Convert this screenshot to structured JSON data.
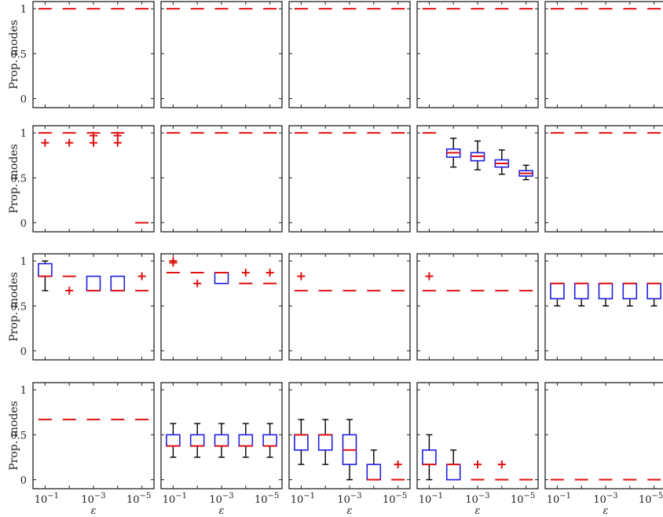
{
  "chart_data": {
    "type": "boxplot-grid",
    "rows": 4,
    "cols": 5,
    "ylabel": "Prop. modes",
    "xlabel": "ε",
    "ylim": [
      -0.1,
      1.08
    ],
    "yticks": [
      0,
      0.5,
      1
    ],
    "ytick_labels": [
      "0",
      "0.5",
      "1"
    ],
    "x_categories": [
      "10^-1",
      "10^-2",
      "10^-3",
      "10^-4",
      "10^-5"
    ],
    "xtick_labels": [
      {
        "base": "10",
        "exp": "−1"
      },
      {
        "base": "10",
        "exp": "−3"
      },
      {
        "base": "10",
        "exp": "−5"
      }
    ],
    "xtick_positions": [
      1,
      3,
      5
    ],
    "colors": {
      "box": "#1f1fe0",
      "median": "#e01010",
      "whisker": "#000000",
      "outlier": "#e01010",
      "axes": "#222222"
    },
    "panels": [
      {
        "row": 0,
        "col": 0,
        "boxes": [
          {
            "med": 1
          },
          {
            "med": 1
          },
          {
            "med": 1
          },
          {
            "med": 1
          },
          {
            "med": 1
          }
        ]
      },
      {
        "row": 0,
        "col": 1,
        "boxes": [
          {
            "med": 1
          },
          {
            "med": 1
          },
          {
            "med": 1
          },
          {
            "med": 1
          },
          {
            "med": 1
          }
        ]
      },
      {
        "row": 0,
        "col": 2,
        "boxes": [
          {
            "med": 1
          },
          {
            "med": 1
          },
          {
            "med": 1
          },
          {
            "med": 1
          },
          {
            "med": 1
          }
        ]
      },
      {
        "row": 0,
        "col": 3,
        "boxes": [
          {
            "med": 1
          },
          {
            "med": 1
          },
          {
            "med": 1
          },
          {
            "med": 1
          },
          {
            "med": 1
          }
        ]
      },
      {
        "row": 0,
        "col": 4,
        "boxes": [
          {
            "med": 1
          },
          {
            "med": 1
          },
          {
            "med": 1
          },
          {
            "med": 1
          },
          {
            "med": 1
          }
        ]
      },
      {
        "row": 1,
        "col": 0,
        "boxes": [
          {
            "med": 1,
            "out": [
              0.89
            ]
          },
          {
            "med": 1,
            "out": [
              0.89
            ]
          },
          {
            "med": 1,
            "out": [
              0.89,
              0.97
            ]
          },
          {
            "med": 1,
            "out": [
              0.89,
              0.97
            ]
          },
          {
            "med": 0
          }
        ]
      },
      {
        "row": 1,
        "col": 1,
        "boxes": [
          {
            "med": 1
          },
          {
            "med": 1
          },
          {
            "med": 1
          },
          {
            "med": 1
          },
          {
            "med": 1
          }
        ]
      },
      {
        "row": 1,
        "col": 2,
        "boxes": [
          {
            "med": 1
          },
          {
            "med": 1
          },
          {
            "med": 1
          },
          {
            "med": 1
          },
          {
            "med": 1
          }
        ]
      },
      {
        "row": 1,
        "col": 3,
        "boxes": [
          {
            "med": 1
          },
          {
            "lw": 0.62,
            "q1": 0.73,
            "med": 0.78,
            "q3": 0.82,
            "uw": 0.94
          },
          {
            "lw": 0.59,
            "q1": 0.69,
            "med": 0.74,
            "q3": 0.78,
            "uw": 0.91
          },
          {
            "lw": 0.54,
            "q1": 0.62,
            "med": 0.66,
            "q3": 0.7,
            "uw": 0.81
          },
          {
            "lw": 0.48,
            "q1": 0.52,
            "med": 0.55,
            "q3": 0.58,
            "uw": 0.64
          }
        ]
      },
      {
        "row": 1,
        "col": 4,
        "boxes": [
          {
            "med": 1
          },
          {
            "med": 1
          },
          {
            "med": 1
          },
          {
            "med": 1
          },
          {
            "med": 1
          }
        ]
      },
      {
        "row": 2,
        "col": 0,
        "boxes": [
          {
            "lw": 0.67,
            "q1": 0.83,
            "med": 0.83,
            "q3": 0.97,
            "uw": 1.0
          },
          {
            "med": 0.83,
            "out": [
              0.67
            ]
          },
          {
            "lw": 0.67,
            "q1": 0.67,
            "med": 0.67,
            "q3": 0.83,
            "uw": 0.83
          },
          {
            "lw": 0.67,
            "q1": 0.67,
            "med": 0.67,
            "q3": 0.83,
            "uw": 0.83
          },
          {
            "med": 0.67,
            "out": [
              0.83
            ]
          }
        ]
      },
      {
        "row": 2,
        "col": 1,
        "boxes": [
          {
            "med": 0.87,
            "out": [
              1.0,
              0.98
            ]
          },
          {
            "med": 0.87,
            "out": [
              0.75
            ]
          },
          {
            "lw": 0.75,
            "q1": 0.75,
            "med": 0.87,
            "q3": 0.87,
            "uw": 0.87
          },
          {
            "med": 0.75,
            "out": [
              0.87
            ]
          },
          {
            "med": 0.75,
            "out": [
              0.87
            ]
          }
        ]
      },
      {
        "row": 2,
        "col": 2,
        "boxes": [
          {
            "med": 0.67,
            "out": [
              0.83
            ]
          },
          {
            "med": 0.67
          },
          {
            "med": 0.67
          },
          {
            "med": 0.67
          },
          {
            "med": 0.67
          }
        ]
      },
      {
        "row": 2,
        "col": 3,
        "boxes": [
          {
            "med": 0.67,
            "out": [
              0.83
            ]
          },
          {
            "med": 0.67
          },
          {
            "med": 0.67
          },
          {
            "med": 0.67
          },
          {
            "med": 0.67
          }
        ]
      },
      {
        "row": 2,
        "col": 4,
        "boxes": [
          {
            "lw": 0.5,
            "q1": 0.58,
            "med": 0.75,
            "q3": 0.75,
            "uw": 0.75
          },
          {
            "lw": 0.5,
            "q1": 0.58,
            "med": 0.75,
            "q3": 0.75,
            "uw": 0.75
          },
          {
            "lw": 0.5,
            "q1": 0.58,
            "med": 0.75,
            "q3": 0.75,
            "uw": 0.75
          },
          {
            "lw": 0.5,
            "q1": 0.58,
            "med": 0.75,
            "q3": 0.75,
            "uw": 0.75
          },
          {
            "lw": 0.5,
            "q1": 0.58,
            "med": 0.75,
            "q3": 0.75,
            "uw": 0.75
          }
        ]
      },
      {
        "row": 3,
        "col": 0,
        "boxes": [
          {
            "med": 0.67
          },
          {
            "med": 0.67
          },
          {
            "med": 0.67
          },
          {
            "med": 0.67
          },
          {
            "med": 0.67
          }
        ]
      },
      {
        "row": 3,
        "col": 1,
        "boxes": [
          {
            "lw": 0.25,
            "q1": 0.375,
            "med": 0.375,
            "q3": 0.5,
            "uw": 0.625
          },
          {
            "lw": 0.25,
            "q1": 0.375,
            "med": 0.375,
            "q3": 0.5,
            "uw": 0.625
          },
          {
            "lw": 0.25,
            "q1": 0.375,
            "med": 0.375,
            "q3": 0.5,
            "uw": 0.625
          },
          {
            "lw": 0.25,
            "q1": 0.375,
            "med": 0.375,
            "q3": 0.5,
            "uw": 0.625
          },
          {
            "lw": 0.25,
            "q1": 0.375,
            "med": 0.375,
            "q3": 0.5,
            "uw": 0.625
          }
        ]
      },
      {
        "row": 3,
        "col": 2,
        "boxes": [
          {
            "lw": 0.17,
            "q1": 0.33,
            "med": 0.5,
            "q3": 0.5,
            "uw": 0.67
          },
          {
            "lw": 0.17,
            "q1": 0.33,
            "med": 0.5,
            "q3": 0.5,
            "uw": 0.67
          },
          {
            "lw": 0.0,
            "q1": 0.17,
            "med": 0.33,
            "q3": 0.5,
            "uw": 0.67
          },
          {
            "lw": 0.0,
            "q1": 0.0,
            "med": 0.0,
            "q3": 0.17,
            "uw": 0.33
          },
          {
            "med": 0.0,
            "out": [
              0.17
            ]
          }
        ]
      },
      {
        "row": 3,
        "col": 3,
        "boxes": [
          {
            "lw": 0.0,
            "q1": 0.17,
            "med": 0.17,
            "q3": 0.33,
            "uw": 0.5
          },
          {
            "lw": 0.0,
            "q1": 0.0,
            "med": 0.17,
            "q3": 0.17,
            "uw": 0.33
          },
          {
            "med": 0.0,
            "out": [
              0.17
            ]
          },
          {
            "med": 0.0,
            "out": [
              0.17
            ]
          },
          {
            "med": 0.0
          }
        ]
      },
      {
        "row": 3,
        "col": 4,
        "boxes": [
          {
            "med": 0
          },
          {
            "med": 0
          },
          {
            "med": 0
          },
          {
            "med": 0
          },
          {
            "med": 0
          }
        ]
      }
    ]
  }
}
